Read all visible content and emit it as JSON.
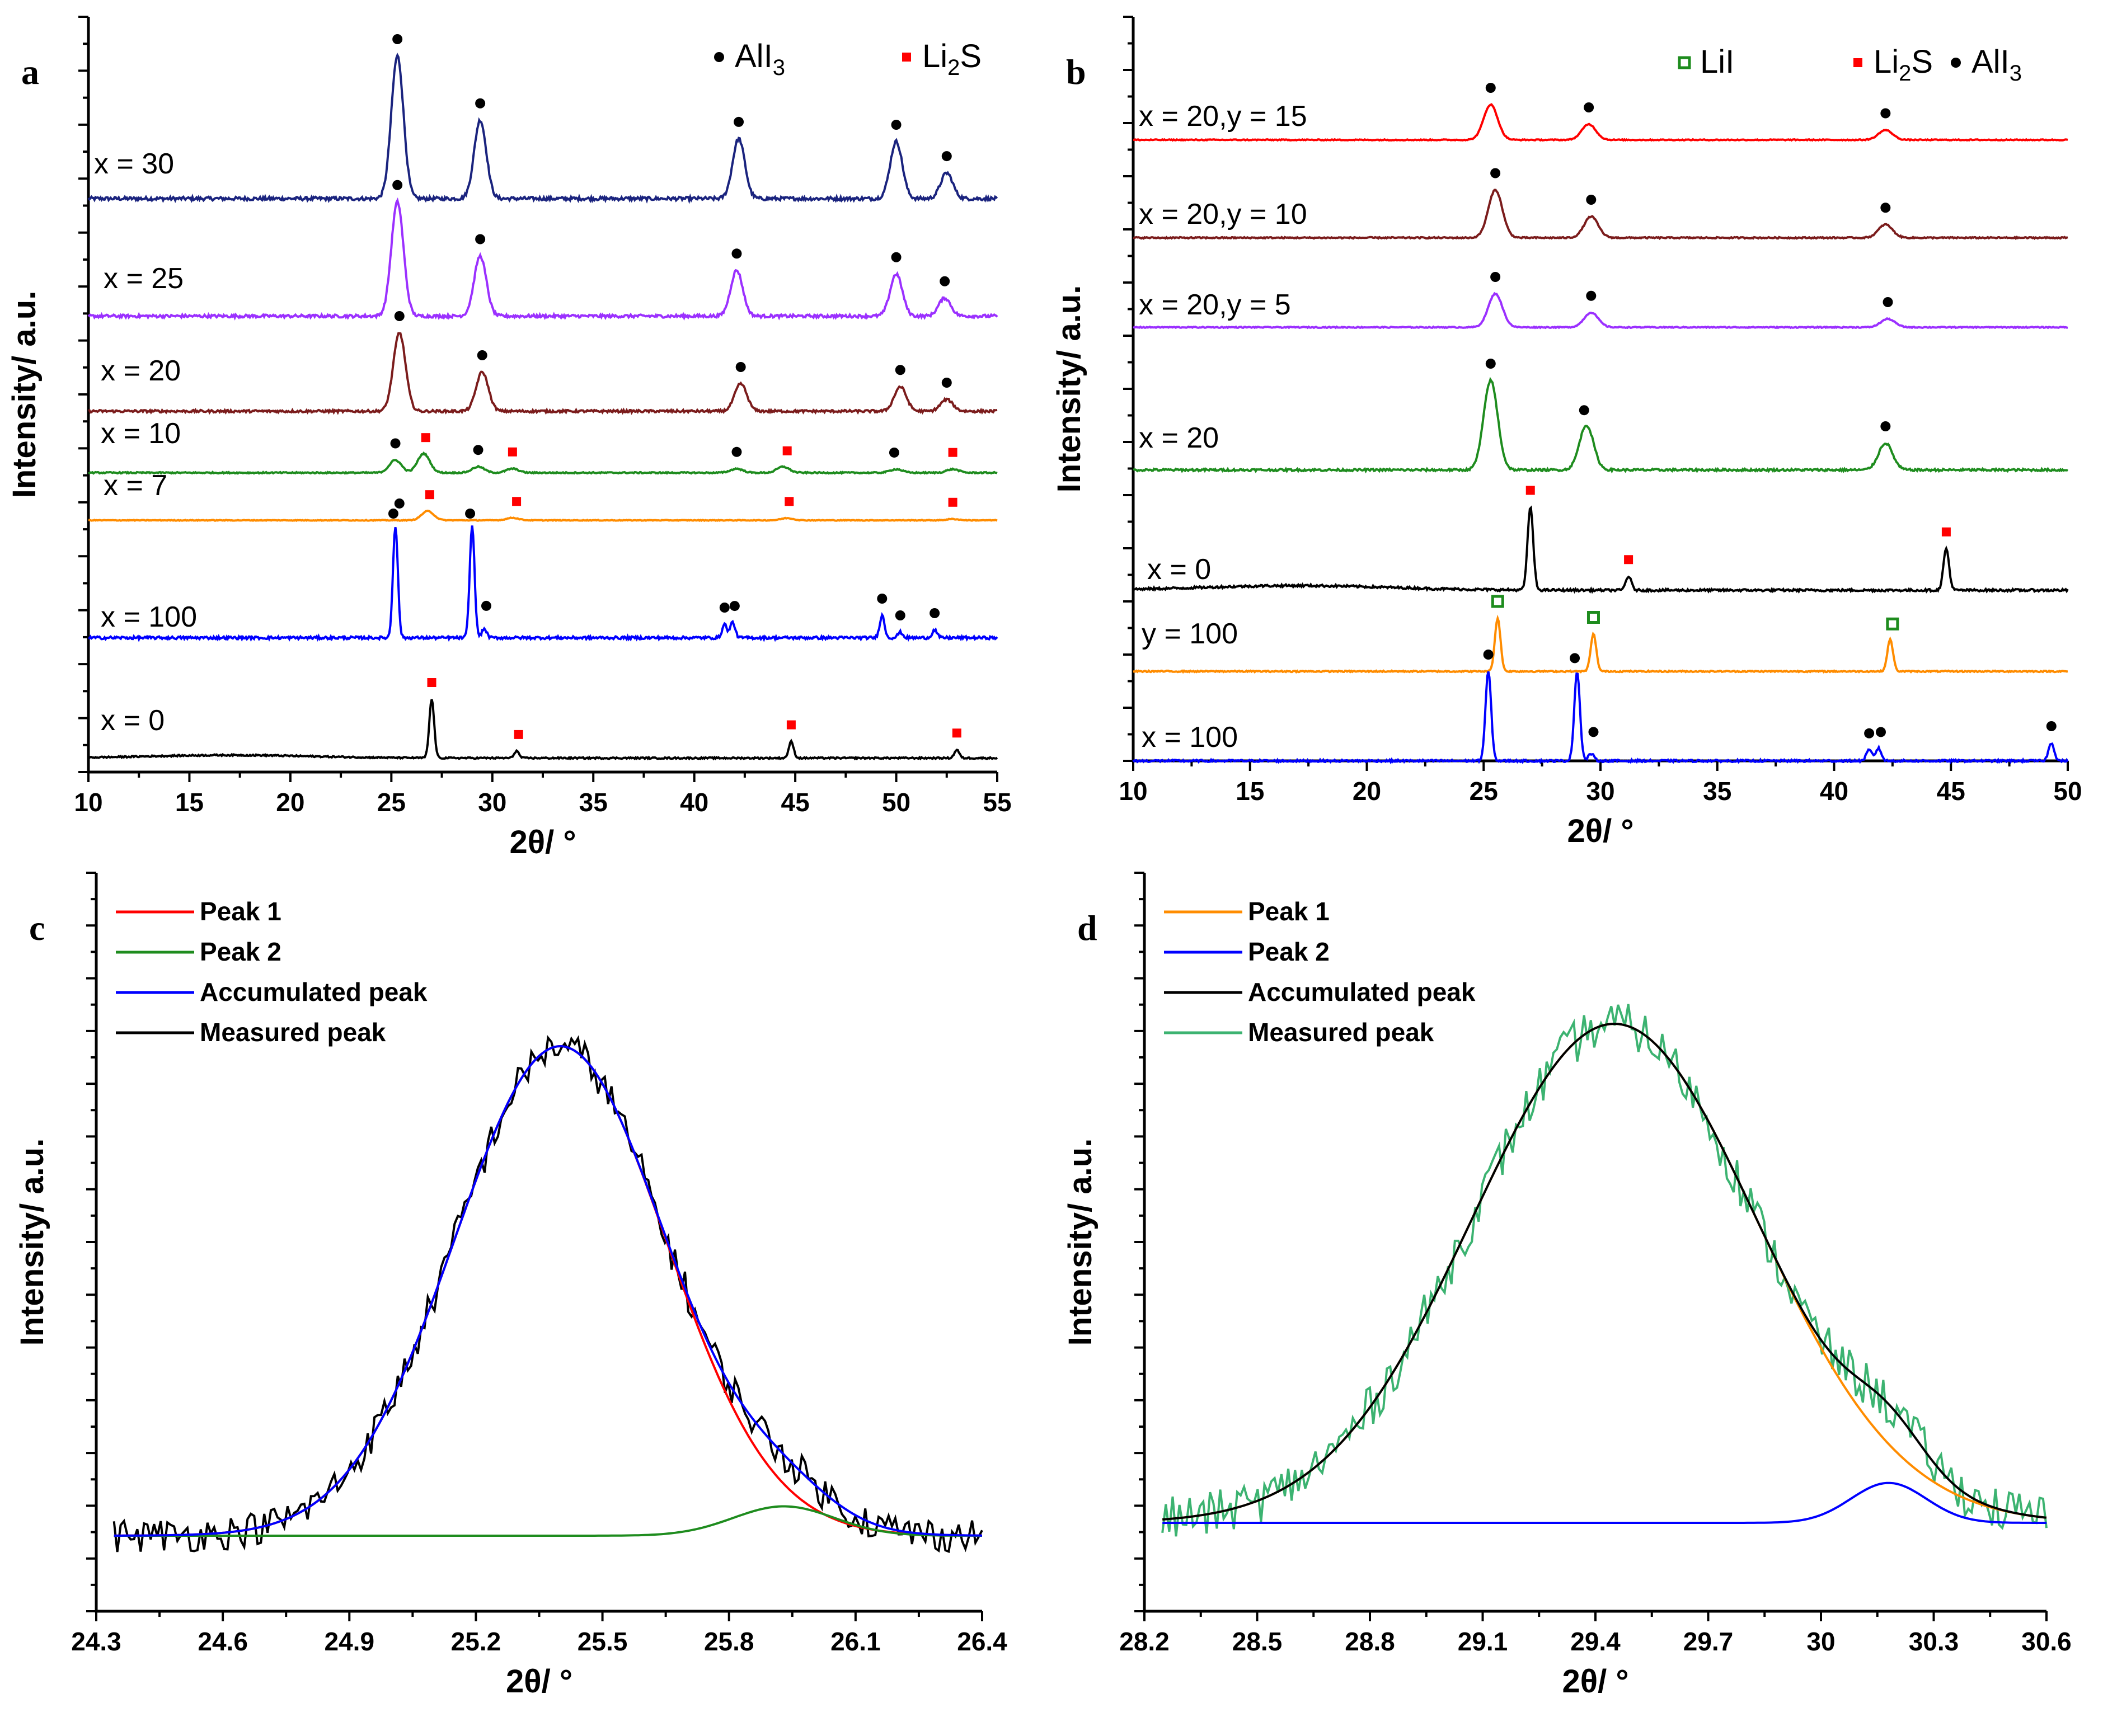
{
  "chart_data": [
    {
      "panel": "a",
      "type": "line",
      "xlabel": "2θ/ °",
      "ylabel": "Intensity/ a.u.",
      "xlim": [
        10,
        55
      ],
      "xticks": [
        10,
        15,
        20,
        25,
        30,
        35,
        40,
        45,
        50,
        55
      ],
      "legend": [
        {
          "label": "AlI3",
          "marker": "dot",
          "color": "#000000",
          "display": [
            "AlI",
            "3",
            ""
          ]
        },
        {
          "label": "Li2S",
          "marker": "square",
          "color": "#ff0000",
          "display": [
            "Li",
            "2",
            "S"
          ]
        }
      ],
      "series": [
        {
          "name": "x = 30",
          "color": "#1a237e",
          "peaks": [
            [
              25.3,
              1.0
            ],
            [
              29.4,
              0.55
            ],
            [
              42.2,
              0.42
            ],
            [
              50.0,
              0.4
            ],
            [
              52.5,
              0.18
            ]
          ],
          "markers": [
            [
              25.3,
              "dot"
            ],
            [
              29.4,
              "dot"
            ],
            [
              42.2,
              "dot"
            ],
            [
              50.0,
              "dot"
            ],
            [
              52.5,
              "dot"
            ]
          ]
        },
        {
          "name": "x = 25",
          "color": "#9b30ff",
          "peaks": [
            [
              25.3,
              0.95
            ],
            [
              29.4,
              0.5
            ],
            [
              42.1,
              0.38
            ],
            [
              50.0,
              0.35
            ],
            [
              52.4,
              0.15
            ]
          ],
          "markers": [
            [
              25.3,
              "dot"
            ],
            [
              29.4,
              "dot"
            ],
            [
              42.1,
              "dot"
            ],
            [
              50.0,
              "dot"
            ],
            [
              52.4,
              "dot"
            ]
          ]
        },
        {
          "name": "x = 20",
          "color": "#7b1c1c",
          "peaks": [
            [
              25.4,
              0.8
            ],
            [
              29.5,
              0.4
            ],
            [
              42.3,
              0.28
            ],
            [
              50.2,
              0.25
            ],
            [
              52.5,
              0.12
            ]
          ],
          "markers": [
            [
              25.4,
              "dot"
            ],
            [
              29.5,
              "dot"
            ],
            [
              42.3,
              "dot"
            ],
            [
              50.2,
              "dot"
            ],
            [
              52.5,
              "dot"
            ]
          ]
        },
        {
          "name": "x = 10",
          "color": "#1e8c1e",
          "peaks": [
            [
              25.2,
              0.25
            ],
            [
              26.6,
              0.38
            ],
            [
              29.3,
              0.12
            ],
            [
              31.0,
              0.08
            ],
            [
              42.1,
              0.08
            ],
            [
              44.4,
              0.12
            ],
            [
              50.0,
              0.07
            ],
            [
              52.8,
              0.07
            ]
          ],
          "markers": [
            [
              25.2,
              "dot"
            ],
            [
              26.7,
              "square"
            ],
            [
              29.3,
              "dot"
            ],
            [
              31.0,
              "square"
            ],
            [
              42.1,
              "dot"
            ],
            [
              44.6,
              "square"
            ],
            [
              49.9,
              "dot"
            ],
            [
              52.8,
              "square"
            ]
          ]
        },
        {
          "name": "x = 7",
          "color": "#ff8c00",
          "peaks": [
            [
              26.8,
              0.3
            ],
            [
              31.0,
              0.08
            ],
            [
              44.6,
              0.07
            ],
            [
              52.8,
              0.04
            ]
          ],
          "markers": [
            [
              25.4,
              "dot"
            ],
            [
              26.9,
              "square"
            ],
            [
              31.2,
              "square"
            ],
            [
              44.7,
              "square"
            ],
            [
              52.8,
              "square"
            ]
          ]
        },
        {
          "name": "x = 100",
          "color": "#0000ff",
          "peaks": [
            [
              25.2,
              1.0
            ],
            [
              29.0,
              1.0
            ],
            [
              29.6,
              0.08
            ],
            [
              41.5,
              0.12
            ],
            [
              41.9,
              0.14
            ],
            [
              49.3,
              0.2
            ],
            [
              50.2,
              0.05
            ],
            [
              51.9,
              0.07
            ]
          ],
          "markers": [
            [
              25.1,
              "dot"
            ],
            [
              28.9,
              "dot"
            ],
            [
              29.7,
              "dot"
            ],
            [
              41.5,
              "dot"
            ],
            [
              42.0,
              "dot"
            ],
            [
              49.3,
              "dot"
            ],
            [
              50.2,
              "dot"
            ],
            [
              51.9,
              "dot"
            ]
          ]
        },
        {
          "name": "x = 0",
          "color": "#000000",
          "peaks": [
            [
              27.0,
              1.0
            ],
            [
              31.2,
              0.12
            ],
            [
              44.8,
              0.28
            ],
            [
              53.0,
              0.14
            ]
          ],
          "markers": [
            [
              27.0,
              "square"
            ],
            [
              31.3,
              "square"
            ],
            [
              44.8,
              "square"
            ],
            [
              53.0,
              "square"
            ]
          ]
        }
      ]
    },
    {
      "panel": "b",
      "type": "line",
      "xlabel": "2θ/ °",
      "ylabel": "Intensity/ a.u.",
      "xlim": [
        10,
        50
      ],
      "xticks": [
        10,
        15,
        20,
        25,
        30,
        35,
        40,
        45,
        50
      ],
      "legend": [
        {
          "label": "LiI",
          "marker": "open-square",
          "color": "#1e8c1e",
          "display": [
            "LiI",
            "",
            ""
          ]
        },
        {
          "label": "Li2S",
          "marker": "square",
          "color": "#ff0000",
          "display": [
            "Li",
            "2",
            "S"
          ]
        },
        {
          "label": "AlI3",
          "marker": "dot",
          "color": "#000000",
          "display": [
            "AlI",
            "3",
            ""
          ]
        }
      ],
      "series": [
        {
          "name": "x = 20,y = 15",
          "color": "#ff0000",
          "peaks": [
            [
              25.3,
              0.9
            ],
            [
              29.5,
              0.4
            ],
            [
              42.2,
              0.25
            ]
          ],
          "markers": [
            [
              25.3,
              "dot"
            ],
            [
              29.5,
              "dot"
            ],
            [
              42.2,
              "dot"
            ]
          ]
        },
        {
          "name": "x = 20,y = 10",
          "color": "#7b1c1c",
          "peaks": [
            [
              25.5,
              0.9
            ],
            [
              29.6,
              0.4
            ],
            [
              42.2,
              0.25
            ]
          ],
          "markers": [
            [
              25.5,
              "dot"
            ],
            [
              29.6,
              "dot"
            ],
            [
              42.2,
              "dot"
            ]
          ]
        },
        {
          "name": "x = 20,y = 5",
          "color": "#9b30ff",
          "peaks": [
            [
              25.5,
              0.8
            ],
            [
              29.6,
              0.35
            ],
            [
              42.3,
              0.2
            ]
          ],
          "markers": [
            [
              25.5,
              "dot"
            ],
            [
              29.6,
              "dot"
            ],
            [
              42.3,
              "dot"
            ]
          ]
        },
        {
          "name": "x = 20",
          "color": "#1e8c1e",
          "peaks": [
            [
              25.3,
              1.0
            ],
            [
              29.4,
              0.5
            ],
            [
              42.2,
              0.3
            ]
          ],
          "markers": [
            [
              25.3,
              "dot"
            ],
            [
              29.3,
              "dot"
            ],
            [
              42.2,
              "dot"
            ]
          ]
        },
        {
          "name": "x = 0",
          "color": "#000000",
          "peaks": [
            [
              27.0,
              0.9
            ],
            [
              31.2,
              0.15
            ],
            [
              44.8,
              0.45
            ]
          ],
          "markers": [
            [
              27.0,
              "square"
            ],
            [
              31.2,
              "square"
            ],
            [
              44.8,
              "square"
            ]
          ]
        },
        {
          "name": "y = 100",
          "color": "#ff8c00",
          "peaks": [
            [
              25.6,
              1.0
            ],
            [
              29.7,
              0.7
            ],
            [
              42.4,
              0.6
            ]
          ],
          "markers": [
            [
              25.6,
              "open-square"
            ],
            [
              29.7,
              "open-square"
            ],
            [
              42.5,
              "open-square"
            ]
          ]
        },
        {
          "name": "x = 100",
          "color": "#0000ff",
          "peaks": [
            [
              25.2,
              1.0
            ],
            [
              29.0,
              1.0
            ],
            [
              29.6,
              0.08
            ],
            [
              41.5,
              0.12
            ],
            [
              41.9,
              0.14
            ],
            [
              49.3,
              0.2
            ]
          ],
          "markers": [
            [
              25.2,
              "dot"
            ],
            [
              28.9,
              "dot"
            ],
            [
              29.7,
              "dot"
            ],
            [
              41.5,
              "dot"
            ],
            [
              42.0,
              "dot"
            ],
            [
              49.3,
              "dot"
            ]
          ]
        }
      ]
    },
    {
      "panel": "c",
      "type": "line",
      "xlabel": "2θ/ °",
      "ylabel": "Intensity/ a.u.",
      "xlim": [
        24.3,
        26.4
      ],
      "xticks": [
        24.3,
        24.6,
        24.9,
        25.2,
        25.5,
        25.8,
        26.1,
        26.4
      ],
      "legend": [
        {
          "label": "Peak 1",
          "color": "#ff0000"
        },
        {
          "label": "Peak 2",
          "color": "#1e8c1e"
        },
        {
          "label": "Accumulated peak",
          "color": "#0000ff"
        },
        {
          "label": "Measured peak",
          "color": "#000000"
        }
      ],
      "series": [
        {
          "name": "Peak 1",
          "center": 25.4,
          "sigma": 0.25,
          "amplitude": 1.0
        },
        {
          "name": "Peak 2",
          "center": 25.93,
          "sigma": 0.12,
          "amplitude": 0.06
        }
      ],
      "baseline": 0.0
    },
    {
      "panel": "d",
      "type": "line",
      "xlabel": "2θ/ °",
      "ylabel": "Intensity/ a.u.",
      "xlim": [
        28.2,
        30.6
      ],
      "xticks": [
        28.2,
        28.5,
        28.8,
        29.1,
        29.4,
        29.7,
        30.0,
        30.3,
        30.6
      ],
      "legend": [
        {
          "label": "Peak 1",
          "color": "#ff8c00"
        },
        {
          "label": "Peak 2",
          "color": "#0000ff"
        },
        {
          "label": "Accumulated peak",
          "color": "#000000"
        },
        {
          "label": "Measured peak",
          "color": "#3cb371"
        }
      ],
      "series": [
        {
          "name": "Peak 1",
          "center": 29.45,
          "sigma": 0.38,
          "amplitude": 1.0
        },
        {
          "name": "Peak 2",
          "center": 30.18,
          "sigma": 0.1,
          "amplitude": 0.08
        }
      ],
      "baseline": 0.0
    }
  ]
}
